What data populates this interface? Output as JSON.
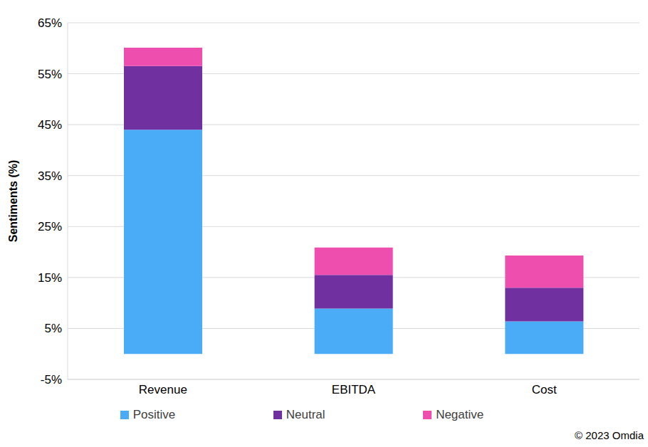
{
  "chart_data": {
    "type": "bar",
    "stacked": true,
    "categories": [
      "Revenue",
      "EBITDA",
      "Cost"
    ],
    "series": [
      {
        "name": "Positive",
        "color": "#4aabf7",
        "values": [
          44.0,
          8.9,
          6.4
        ]
      },
      {
        "name": "Neutral",
        "color": "#7030a0",
        "values": [
          12.5,
          6.6,
          6.6
        ]
      },
      {
        "name": "Negative",
        "color": "#ee4fae",
        "values": [
          3.6,
          5.4,
          6.3
        ]
      }
    ],
    "ylim": [
      -5,
      65
    ],
    "yticks": [
      {
        "value": -5,
        "label": "-5%"
      },
      {
        "value": 5,
        "label": "5%"
      },
      {
        "value": 15,
        "label": "15%"
      },
      {
        "value": 25,
        "label": "25%"
      },
      {
        "value": 35,
        "label": "35%"
      },
      {
        "value": 45,
        "label": "45%"
      },
      {
        "value": 55,
        "label": "55%"
      },
      {
        "value": 65,
        "label": "65%"
      }
    ],
    "y_label": "Sentiments (%)",
    "grid": true,
    "legend": "bottom",
    "source": "© 2023 Omdia"
  }
}
